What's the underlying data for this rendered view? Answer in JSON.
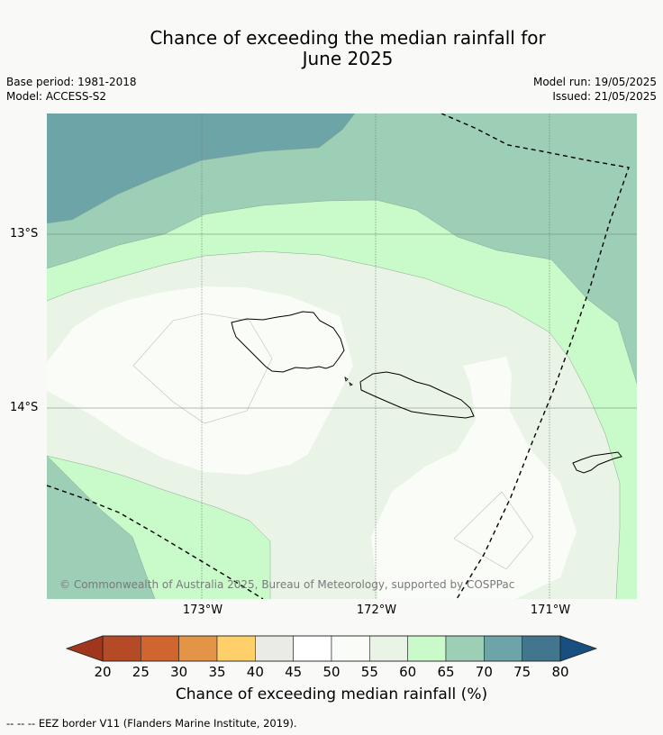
{
  "title_line1": "Chance of exceeding the median rainfall for",
  "title_line2": "June 2025",
  "base_period": "Base period: 1981-2018",
  "model": "Model: ACCESS-S2",
  "model_run": "Model run: 19/05/2025",
  "issued": "Issued: 21/05/2025",
  "lat_labels": [
    "13°S",
    "14°S"
  ],
  "lon_labels": [
    "173°W",
    "172°W",
    "171°W"
  ],
  "copyright": "© Commonwealth of Australia 2025, Bureau of Meteorology, supported by COSPPac",
  "colorbar": {
    "ticks": [
      "20",
      "25",
      "30",
      "35",
      "40",
      "45",
      "50",
      "55",
      "60",
      "65",
      "70",
      "75",
      "80"
    ],
    "colors": [
      "#a0361e",
      "#b54a27",
      "#d0652f",
      "#e39446",
      "#ffd06a",
      "#ebebe5",
      "#ffffff",
      "#fafcf8",
      "#e9f4e6",
      "#c9fac9",
      "#9ccfb6",
      "#6da4a7",
      "#42768e",
      "#174f80"
    ],
    "title": "Chance of exceeding median rainfall (%)"
  },
  "footnote": "--  --  -- EEZ border V11 (Flanders Marine Institute, 2019).",
  "map_extent": {
    "lon_min": -173.9,
    "lon_max": -170.5,
    "lat_min": -15.1,
    "lat_max": -12.3
  }
}
